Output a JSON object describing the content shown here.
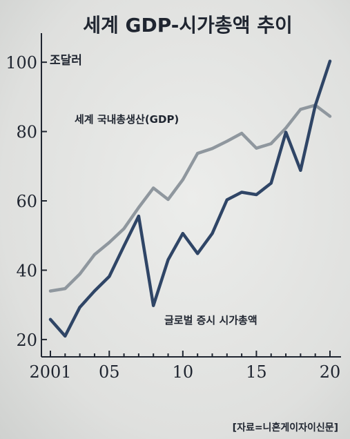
{
  "chart_data": {
    "type": "line",
    "title": "세계 GDP-시가총액 추이",
    "unit_label": "조달러",
    "source": "[자료=니혼게이자이신문]",
    "x": [
      2001,
      2002,
      2003,
      2004,
      2005,
      2006,
      2007,
      2008,
      2009,
      2010,
      2011,
      2012,
      2013,
      2014,
      2015,
      2016,
      2017,
      2018,
      2019,
      2020
    ],
    "xlim": [
      2001,
      2020
    ],
    "ylim": [
      15,
      106
    ],
    "x_ticks": [
      {
        "value": 2001,
        "label": "2001"
      },
      {
        "value": 2005,
        "label": "05"
      },
      {
        "value": 2010,
        "label": "10"
      },
      {
        "value": 2015,
        "label": "15"
      },
      {
        "value": 2020,
        "label": "20"
      }
    ],
    "y_ticks": [
      {
        "value": 20,
        "label": "20"
      },
      {
        "value": 40,
        "label": "40"
      },
      {
        "value": 60,
        "label": "60"
      },
      {
        "value": 80,
        "label": "80"
      },
      {
        "value": 100,
        "label": "100"
      }
    ],
    "grid": false,
    "series": [
      {
        "name": "세계 국내총생산(GDP)",
        "color": "#8f979e",
        "values": [
          34.0,
          34.7,
          38.9,
          44.5,
          48.0,
          52.0,
          58.1,
          63.7,
          60.4,
          66.1,
          73.7,
          75.1,
          77.2,
          79.5,
          75.2,
          76.5,
          81.0,
          86.4,
          87.6,
          84.4
        ]
      },
      {
        "name": "글로벌 증시 시가총액",
        "color": "#2f4566",
        "values": [
          25.8,
          21.0,
          29.3,
          34.0,
          38.2,
          47.0,
          55.6,
          29.8,
          43.0,
          50.6,
          44.8,
          50.6,
          60.3,
          62.5,
          61.8,
          65.1,
          79.8,
          68.8,
          87.5,
          100.3
        ]
      }
    ]
  }
}
